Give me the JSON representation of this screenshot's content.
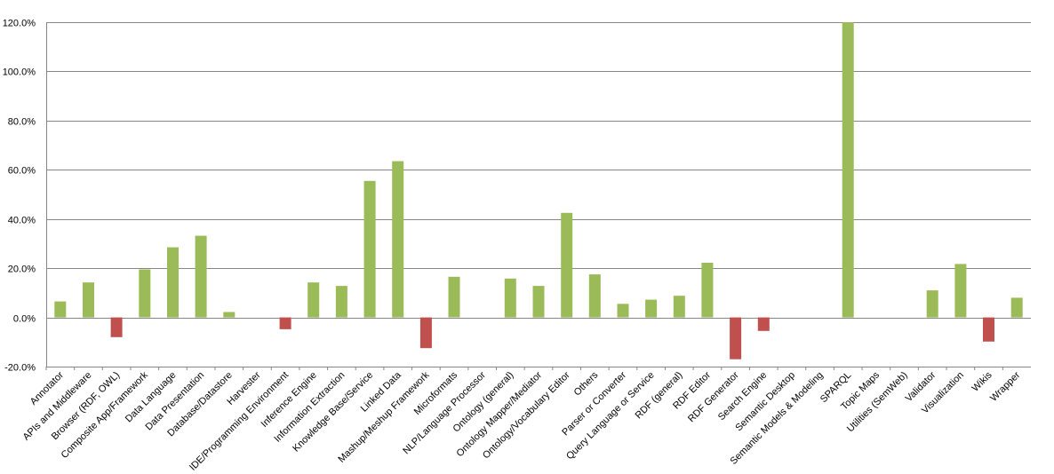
{
  "chart_data": {
    "type": "bar",
    "title": "",
    "xlabel": "",
    "ylabel": "",
    "ylim": [
      -20,
      120
    ],
    "ytick_step": 20,
    "ytick_format": "percent_1dp",
    "grid": true,
    "legend": "none",
    "colors": {
      "positive": "#9bbb59",
      "negative": "#c0504d",
      "grid": "#868686",
      "axis": "#868686"
    },
    "categories": [
      "Annotator",
      "APIs and Middleware",
      "Browser (RDF, OWL)",
      "Composite App/Framework",
      "Data Language",
      "Data Presentation",
      "Database/Datastore",
      "Harvester",
      "IDE/Programming Environment",
      "Inference Engine",
      "Information Extraction",
      "Knowledge Base/Service",
      "Linked Data",
      "Mashup/Meshup Framework",
      "Microformats",
      "NLP/Language Processor",
      "Ontology (general)",
      "Ontology Mapper/Mediator",
      "Ontology/Vocabulary Editor",
      "Others",
      "Parser or Converter",
      "Query Language or Service",
      "RDF (general)",
      "RDF Editor",
      "RDF Generator",
      "Search Engine",
      "Semantic Desktop",
      "Semantic Models & Modeling",
      "SPARQL",
      "Topic Maps",
      "Utilities (SemWeb)",
      "Validator",
      "Visualization",
      "Wikis",
      "Wrapper"
    ],
    "values": [
      6.5,
      14.2,
      -8.0,
      19.5,
      28.5,
      33.2,
      2.2,
      0,
      -4.8,
      14.2,
      12.8,
      55.5,
      63.5,
      -12.5,
      16.5,
      0,
      15.8,
      12.8,
      42.5,
      17.5,
      5.5,
      7.2,
      8.8,
      22.2,
      -17.0,
      -5.5,
      0,
      0,
      120.0,
      0,
      0,
      11.0,
      21.7,
      -9.8,
      8.0
    ]
  }
}
